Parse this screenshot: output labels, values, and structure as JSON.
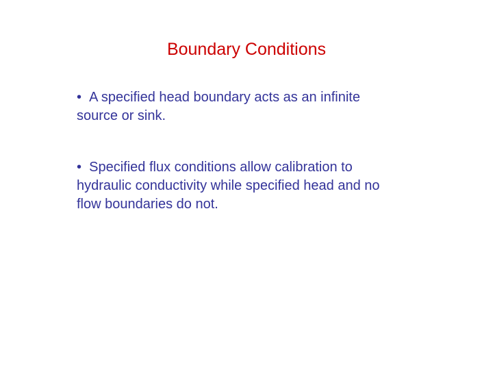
{
  "slide": {
    "title": "Boundary Conditions",
    "title_color": "#cc0000",
    "title_fontsize": 25,
    "body_color": "#333399",
    "body_fontsize": 20,
    "background_color": "#ffffff",
    "bullets": [
      {
        "marker": "•",
        "text": "A specified head boundary acts as an infinite source or sink."
      },
      {
        "marker": "•",
        "text": "Specified flux conditions allow calibration to hydraulic conductivity while specified head and no flow boundaries do not."
      }
    ]
  }
}
